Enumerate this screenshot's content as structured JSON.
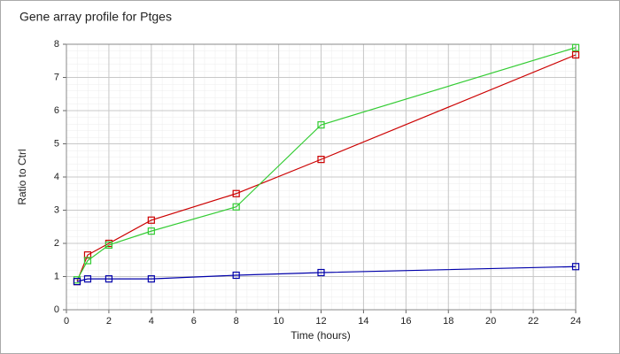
{
  "chart_data": {
    "type": "line",
    "title": "Gene array profile for Ptges",
    "x_label": "Time (hours)",
    "y_label": "Ratio to Ctrl",
    "x": [
      0.5,
      1,
      2,
      4,
      8,
      12,
      24
    ],
    "series": [
      {
        "color": "#cc0000",
        "values": [
          0.85,
          1.65,
          2.0,
          2.7,
          3.5,
          4.53,
          7.68
        ]
      },
      {
        "color": "#33cc33",
        "values": [
          0.9,
          1.48,
          1.95,
          2.37,
          3.1,
          5.57,
          7.9
        ]
      },
      {
        "color": "#0000aa",
        "values": [
          0.85,
          0.93,
          0.93,
          0.93,
          1.04,
          1.12,
          1.3
        ]
      }
    ],
    "xlim": [
      0,
      24
    ],
    "xticks": [
      0,
      2,
      4,
      6,
      8,
      10,
      12,
      14,
      16,
      18,
      20,
      22,
      24
    ],
    "ylim": [
      0,
      8
    ],
    "yticks": [
      0,
      1,
      2,
      3,
      4,
      5,
      6,
      7,
      8
    ],
    "grid": true
  }
}
